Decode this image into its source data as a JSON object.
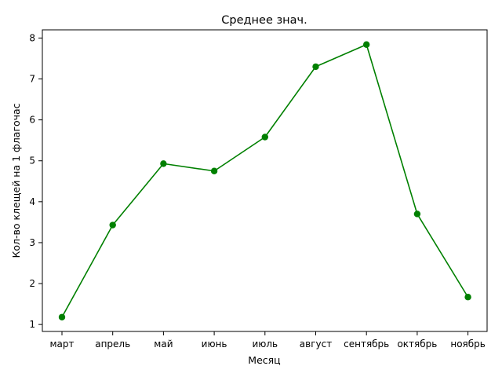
{
  "chart_data": {
    "type": "line",
    "title": "Среднее знач.",
    "xlabel": "Месяц",
    "ylabel": "Кол-во клещей на 1 флагочас",
    "categories": [
      "март",
      "апрель",
      "май",
      "июнь",
      "июль",
      "август",
      "сентябрь",
      "октябрь",
      "ноябрь"
    ],
    "series": [
      {
        "values": [
          1.18,
          3.43,
          4.93,
          4.75,
          5.58,
          7.3,
          7.84,
          3.7,
          1.67
        ],
        "color": "#008000",
        "marker": "circle"
      }
    ],
    "ylim": [
      0.83,
      8.2
    ],
    "yticks": [
      1,
      2,
      3,
      4,
      5,
      6,
      7,
      8
    ],
    "grid": false
  }
}
